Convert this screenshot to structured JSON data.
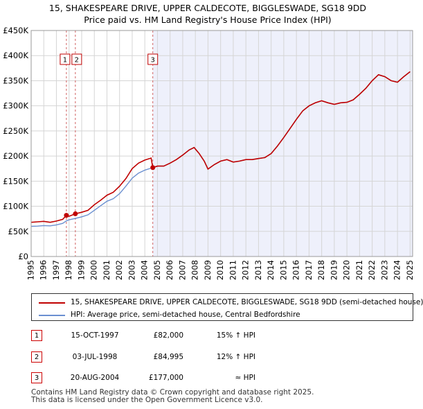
{
  "title_line1": "15, SHAKESPEARE DRIVE, UPPER CALDECOTE, BIGGLESWADE, SG18 9DD",
  "title_line2": "Price paid vs. HM Land Registry's House Price Index (HPI)",
  "colors": {
    "property": "#c00000",
    "hpi": "#6a8fd0",
    "shade": "#eef0fb",
    "grid": "#d5d5d5",
    "vline": "#d06060"
  },
  "chart_data": {
    "type": "line",
    "title": "15, SHAKESPEARE DRIVE, UPPER CALDECOTE, BIGGLESWADE, SG18 9DD — Price paid vs. HM Land Registry's House Price Index (HPI)",
    "xlim": [
      1995,
      2025.2
    ],
    "ylim": [
      0,
      450000
    ],
    "x_ticks": [
      1995,
      1996,
      1997,
      1998,
      1999,
      2000,
      2001,
      2002,
      2003,
      2004,
      2005,
      2006,
      2007,
      2008,
      2009,
      2010,
      2011,
      2012,
      2013,
      2014,
      2015,
      2016,
      2017,
      2018,
      2019,
      2020,
      2021,
      2022,
      2023,
      2024,
      2025
    ],
    "y_ticks": [
      0,
      50000,
      100000,
      150000,
      200000,
      250000,
      300000,
      350000,
      400000,
      450000
    ],
    "y_tick_labels": [
      "£0",
      "£50K",
      "£100K",
      "£150K",
      "£200K",
      "£250K",
      "£300K",
      "£350K",
      "£400K",
      "£450K"
    ],
    "grid": true,
    "shaded_from_x": 2004.63,
    "series": [
      {
        "name": "15, SHAKESPEARE DRIVE, UPPER CALDECOTE, BIGGLESWADE, SG18 9DD (semi-detached house)",
        "points": [
          [
            1995,
            68000
          ],
          [
            1995.5,
            69000
          ],
          [
            1996,
            70000
          ],
          [
            1996.5,
            68000
          ],
          [
            1997,
            70500
          ],
          [
            1997.5,
            74000
          ],
          [
            1997.79,
            82000
          ],
          [
            1998,
            80000
          ],
          [
            1998.5,
            84995
          ],
          [
            1999,
            88000
          ],
          [
            1999.5,
            92000
          ],
          [
            2000,
            103000
          ],
          [
            2000.5,
            112000
          ],
          [
            2001,
            122000
          ],
          [
            2001.5,
            128000
          ],
          [
            2002,
            140000
          ],
          [
            2002.5,
            155000
          ],
          [
            2003,
            175000
          ],
          [
            2003.5,
            186000
          ],
          [
            2004,
            192000
          ],
          [
            2004.5,
            196000
          ],
          [
            2004.63,
            177000
          ],
          [
            2005,
            180000
          ],
          [
            2005.5,
            180000
          ],
          [
            2006,
            186000
          ],
          [
            2006.5,
            193000
          ],
          [
            2007,
            202000
          ],
          [
            2007.5,
            212000
          ],
          [
            2007.9,
            217000
          ],
          [
            2008.3,
            205000
          ],
          [
            2008.7,
            190000
          ],
          [
            2009,
            174000
          ],
          [
            2009.5,
            183000
          ],
          [
            2010,
            190000
          ],
          [
            2010.5,
            193000
          ],
          [
            2011,
            188000
          ],
          [
            2011.5,
            190000
          ],
          [
            2012,
            193000
          ],
          [
            2012.5,
            193000
          ],
          [
            2013,
            195000
          ],
          [
            2013.5,
            197000
          ],
          [
            2014,
            205000
          ],
          [
            2014.5,
            220000
          ],
          [
            2015,
            237000
          ],
          [
            2015.5,
            255000
          ],
          [
            2016,
            273000
          ],
          [
            2016.5,
            290000
          ],
          [
            2017,
            300000
          ],
          [
            2017.5,
            306000
          ],
          [
            2018,
            310000
          ],
          [
            2018.5,
            306000
          ],
          [
            2019,
            303000
          ],
          [
            2019.5,
            306000
          ],
          [
            2020,
            307000
          ],
          [
            2020.5,
            312000
          ],
          [
            2021,
            323000
          ],
          [
            2021.5,
            335000
          ],
          [
            2022,
            350000
          ],
          [
            2022.5,
            362000
          ],
          [
            2023,
            358000
          ],
          [
            2023.5,
            350000
          ],
          [
            2024,
            347000
          ],
          [
            2024.5,
            358000
          ],
          [
            2025,
            368000
          ]
        ]
      },
      {
        "name": "HPI: Average price, semi-detached house, Central Bedfordshire",
        "points": [
          [
            1995,
            60000
          ],
          [
            1995.5,
            60500
          ],
          [
            1996,
            61500
          ],
          [
            1996.5,
            61000
          ],
          [
            1997,
            63000
          ],
          [
            1997.5,
            66000
          ],
          [
            1997.79,
            71000
          ],
          [
            1998,
            73000
          ],
          [
            1998.5,
            75800
          ],
          [
            1999,
            79000
          ],
          [
            1999.5,
            83000
          ],
          [
            2000,
            92000
          ],
          [
            2000.5,
            101000
          ],
          [
            2001,
            110000
          ],
          [
            2001.5,
            115000
          ],
          [
            2002,
            125000
          ],
          [
            2002.5,
            140000
          ],
          [
            2003,
            156000
          ],
          [
            2003.5,
            166000
          ],
          [
            2004,
            172000
          ],
          [
            2004.5,
            176000
          ],
          [
            2004.63,
            177000
          ],
          [
            2005,
            180000
          ],
          [
            2005.5,
            180000
          ],
          [
            2006,
            186000
          ],
          [
            2006.5,
            193000
          ],
          [
            2007,
            202000
          ],
          [
            2007.5,
            212000
          ],
          [
            2007.9,
            217000
          ],
          [
            2008.3,
            205000
          ],
          [
            2008.7,
            190000
          ],
          [
            2009,
            174000
          ],
          [
            2009.5,
            183000
          ],
          [
            2010,
            190000
          ],
          [
            2010.5,
            193000
          ],
          [
            2011,
            188000
          ],
          [
            2011.5,
            190000
          ],
          [
            2012,
            193000
          ],
          [
            2012.5,
            193000
          ],
          [
            2013,
            195000
          ],
          [
            2013.5,
            197000
          ],
          [
            2014,
            205000
          ],
          [
            2014.5,
            220000
          ],
          [
            2015,
            237000
          ],
          [
            2015.5,
            255000
          ],
          [
            2016,
            273000
          ],
          [
            2016.5,
            290000
          ],
          [
            2017,
            300000
          ],
          [
            2017.5,
            306000
          ],
          [
            2018,
            310000
          ],
          [
            2018.5,
            306000
          ],
          [
            2019,
            303000
          ],
          [
            2019.5,
            306000
          ],
          [
            2020,
            307000
          ],
          [
            2020.5,
            312000
          ],
          [
            2021,
            323000
          ],
          [
            2021.5,
            335000
          ],
          [
            2022,
            350000
          ],
          [
            2022.5,
            362000
          ],
          [
            2023,
            358000
          ],
          [
            2023.5,
            350000
          ],
          [
            2024,
            347000
          ],
          [
            2024.5,
            358000
          ],
          [
            2025,
            368000
          ]
        ]
      }
    ],
    "sales": [
      {
        "label": "1",
        "x": 1997.79,
        "price": 82000
      },
      {
        "label": "2",
        "x": 1998.5,
        "price": 84995
      },
      {
        "label": "3",
        "x": 2004.63,
        "price": 177000
      }
    ]
  },
  "legend": {
    "property_label": "15, SHAKESPEARE DRIVE, UPPER CALDECOTE, BIGGLESWADE, SG18 9DD (semi-detached house)",
    "hpi_label": "HPI: Average price, semi-detached house, Central Bedfordshire"
  },
  "sales_table": [
    {
      "num": "1",
      "date": "15-OCT-1997",
      "price": "£82,000",
      "hpi": "15% ↑ HPI"
    },
    {
      "num": "2",
      "date": "03-JUL-1998",
      "price": "£84,995",
      "hpi": "12% ↑ HPI"
    },
    {
      "num": "3",
      "date": "20-AUG-2004",
      "price": "£177,000",
      "hpi": "≈ HPI"
    }
  ],
  "footer_line1": "Contains HM Land Registry data © Crown copyright and database right 2025.",
  "footer_line2": "This data is licensed under the Open Government Licence v3.0."
}
